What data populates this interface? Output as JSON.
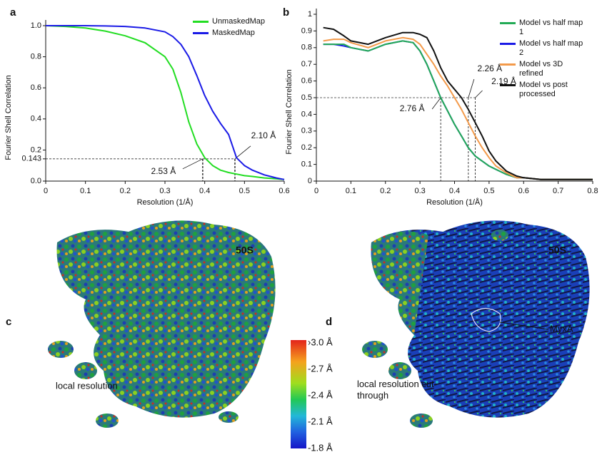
{
  "chart_data": [
    {
      "type": "line",
      "panel_label": "a",
      "xlabel": "Resolution (1/Å)",
      "ylabel": "Fourier Shell Correlation",
      "x": [
        0,
        0.05,
        0.1,
        0.15,
        0.2,
        0.25,
        0.3,
        0.32,
        0.34,
        0.36,
        0.38,
        0.4,
        0.42,
        0.44,
        0.46,
        0.48,
        0.5,
        0.52,
        0.55,
        0.58,
        0.6
      ],
      "series": [
        {
          "name": "UnmaskedMap",
          "color": "#22dd22",
          "values": [
            1.0,
            0.995,
            0.985,
            0.965,
            0.935,
            0.89,
            0.8,
            0.72,
            0.57,
            0.38,
            0.24,
            0.15,
            0.1,
            0.07,
            0.055,
            0.045,
            0.035,
            0.03,
            0.02,
            0.015,
            0.01
          ]
        },
        {
          "name": "MaskedMap",
          "color": "#1a1ae6",
          "values": [
            1.0,
            1.0,
            1.0,
            0.998,
            0.995,
            0.985,
            0.96,
            0.93,
            0.88,
            0.8,
            0.68,
            0.55,
            0.45,
            0.37,
            0.3,
            0.15,
            0.1,
            0.07,
            0.04,
            0.02,
            0.01
          ]
        }
      ],
      "xlim": [
        0,
        0.6
      ],
      "ylim": [
        0,
        1.0
      ],
      "xticks": [
        0,
        0.1,
        0.2,
        0.3,
        0.4,
        0.5,
        0.6
      ],
      "yticks": [
        {
          "value": 0,
          "label": "0.0"
        },
        0.143,
        0.2,
        0.4,
        0.6,
        0.8,
        {
          "value": 1,
          "label": "1.0"
        }
      ],
      "threshold": 0.143,
      "markers": [
        {
          "x": 0.395,
          "label": "2.53 Å"
        },
        {
          "x": 0.476,
          "label": "2.10 Å"
        }
      ],
      "legend": "upper right"
    },
    {
      "type": "line",
      "panel_label": "b",
      "xlabel": "Resolution (1/Å)",
      "ylabel": "Fourier Shell Correlation",
      "x": [
        0.02,
        0.05,
        0.08,
        0.1,
        0.15,
        0.2,
        0.25,
        0.28,
        0.3,
        0.32,
        0.34,
        0.36,
        0.38,
        0.4,
        0.42,
        0.44,
        0.46,
        0.48,
        0.5,
        0.52,
        0.55,
        0.58,
        0.6,
        0.65,
        0.7,
        0.75,
        0.8
      ],
      "series": [
        {
          "name": "Model vs half map 1",
          "color": "#22aa55",
          "values": [
            0.82,
            0.82,
            0.82,
            0.8,
            0.78,
            0.82,
            0.84,
            0.83,
            0.78,
            0.7,
            0.6,
            0.5,
            0.42,
            0.34,
            0.27,
            0.2,
            0.15,
            0.12,
            0.09,
            0.07,
            0.04,
            0.02,
            0.02,
            0.01,
            0.01,
            0.01,
            0.01
          ]
        },
        {
          "name": "Model vs half map 2",
          "color": "#1a1ae6",
          "values": [
            0.82,
            0.82,
            0.81,
            0.8,
            0.78,
            0.82,
            0.84,
            0.83,
            0.78,
            0.7,
            0.6,
            0.5,
            0.42,
            0.34,
            0.27,
            0.2,
            0.15,
            0.12,
            0.09,
            0.07,
            0.04,
            0.02,
            0.02,
            0.01,
            0.01,
            0.01,
            0.01
          ]
        },
        {
          "name": "Model vs 3D refined",
          "color": "#f39a4a",
          "values": [
            0.84,
            0.85,
            0.85,
            0.83,
            0.8,
            0.84,
            0.86,
            0.85,
            0.82,
            0.76,
            0.7,
            0.63,
            0.57,
            0.5,
            0.43,
            0.35,
            0.27,
            0.2,
            0.14,
            0.09,
            0.05,
            0.02,
            0.02,
            0.01,
            0.01,
            0.01,
            0.01
          ]
        },
        {
          "name": "Model vs post processed",
          "color": "#111111",
          "values": [
            0.92,
            0.91,
            0.87,
            0.84,
            0.82,
            0.86,
            0.89,
            0.89,
            0.88,
            0.86,
            0.78,
            0.68,
            0.6,
            0.55,
            0.5,
            0.43,
            0.35,
            0.27,
            0.18,
            0.12,
            0.06,
            0.03,
            0.02,
            0.01,
            0.01,
            0.01,
            0.01
          ]
        }
      ],
      "xlim": [
        0,
        0.8
      ],
      "ylim": [
        0,
        1.0
      ],
      "xticks": [
        0,
        0.1,
        0.2,
        0.3,
        0.4,
        0.5,
        0.6,
        0.7,
        0.8
      ],
      "yticks": [
        0,
        0.1,
        0.2,
        0.3,
        0.4,
        0.5,
        0.6,
        0.7,
        0.8,
        0.9,
        1
      ],
      "threshold": 0.5,
      "markers": [
        {
          "x": 0.36,
          "label": "2.76 Å"
        },
        {
          "x": 0.44,
          "label": "2.26 Å"
        },
        {
          "x": 0.46,
          "label": "2.19 Å"
        }
      ],
      "legend": "upper right"
    }
  ],
  "panels": [
    {
      "label": "c",
      "region": "50S",
      "caption": "local resolution"
    },
    {
      "label": "d",
      "region": "50S",
      "caption": "local resolution cut-through",
      "annotation": "MyxA"
    }
  ],
  "colorbar": {
    "labels": [
      "›3.0 Å",
      "-2.7 Å",
      "-2.4 Å",
      "-2.1 Å",
      "-1.8 Å"
    ]
  }
}
